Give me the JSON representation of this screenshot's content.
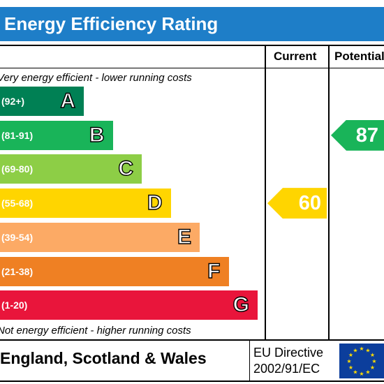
{
  "header": {
    "title": "Energy Efficiency Rating"
  },
  "columns": {
    "current": "Current",
    "potential": "Potential"
  },
  "notes": {
    "top": "Very energy efficient - lower running costs",
    "bottom": "Not energy efficient - higher running costs"
  },
  "chart_data": {
    "type": "bar",
    "title": "Energy Efficiency Rating",
    "categories": [
      "A",
      "B",
      "C",
      "D",
      "E",
      "F",
      "G"
    ],
    "ranges": [
      "(92+)",
      "(81-91)",
      "(69-80)",
      "(55-68)",
      "(39-54)",
      "(21-38)",
      "(1-20)"
    ],
    "colors": [
      "#008054",
      "#19b459",
      "#8dce46",
      "#ffd500",
      "#fcaa65",
      "#ef8023",
      "#e9153b"
    ],
    "current": {
      "value": 60,
      "band": "D",
      "color": "#ffd500"
    },
    "potential": {
      "value": 87,
      "band": "B",
      "color": "#19b459"
    }
  },
  "footer": {
    "country": "England, Scotland & Wales",
    "directive_line1": "EU Directive",
    "directive_line2": "2002/91/EC"
  }
}
